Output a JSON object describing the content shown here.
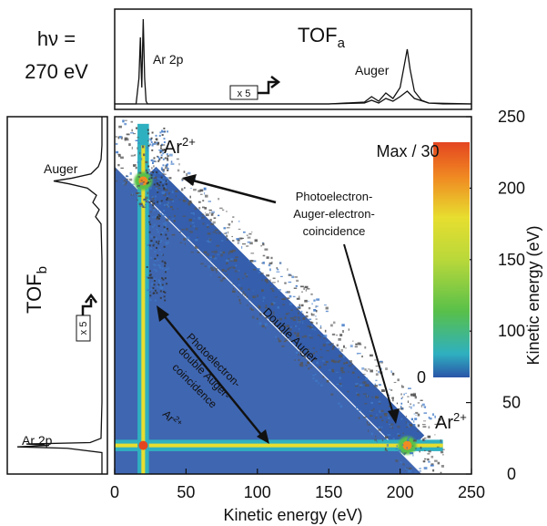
{
  "figure": {
    "photon_energy_line1": "hν =",
    "photon_energy_line2": "270 eV",
    "colors": {
      "frame": "#111111",
      "background_white": "#ffffff",
      "map_blue": "#2a55a8",
      "map_mid_blue": "#3f78c6",
      "map_cyan": "#2fb0c0",
      "map_green": "#58c04a",
      "map_yellow": "#e7de2f",
      "map_orange": "#f08a22",
      "map_red": "#e44520"
    }
  },
  "chart_data": [
    {
      "type": "heatmap",
      "panel": "main",
      "xlabel": "Kinetic energy (eV)",
      "ylabel": "Kinetic energy (eV)",
      "xlim": [
        0,
        250
      ],
      "ylim": [
        0,
        250
      ],
      "x_ticks": [
        0,
        50,
        100,
        150,
        200,
        250
      ],
      "y_ticks": [
        0,
        50,
        100,
        150,
        200,
        250
      ],
      "colorbar": {
        "title": "Max / 30",
        "min_label": "0",
        "range": [
          0,
          1
        ]
      },
      "features": [
        {
          "name": "Ar 2p photoelectron band (horizontal)",
          "y": 20,
          "x_range": [
            0,
            230
          ]
        },
        {
          "name": "Ar 2p photoelectron band (vertical)",
          "x": 20,
          "y_range": [
            0,
            245
          ]
        },
        {
          "name": "Double Auger diagonal band",
          "sum_energy": 230,
          "x_range": [
            22,
            210
          ]
        },
        {
          "name": "Photoelectron-Auger coincidence (upper left)",
          "x": 20,
          "y": 205
        },
        {
          "name": "Photoelectron-Auger coincidence (lower right)",
          "x": 205,
          "y": 20
        }
      ],
      "annotations": [
        {
          "text": "Ar²⁺",
          "x": 30,
          "y": 232
        },
        {
          "text": "Ar²⁺",
          "x": 222,
          "y": 28
        },
        {
          "text": "Double Auger",
          "x": 80,
          "y": 97
        },
        {
          "text": "Photoelectron-double Auger-coincidence",
          "x": 50,
          "y": 60
        },
        {
          "text": "Ar²⁺",
          "x": 28,
          "y": 38
        },
        {
          "text": "Photoelectron-Auger-electron-coincidence",
          "x": 125,
          "y": 205
        }
      ]
    },
    {
      "type": "line",
      "panel": "TOF_a",
      "title": "TOF",
      "title_sub": "a",
      "xlim": [
        0,
        250
      ],
      "series": [
        {
          "name": "",
          "x": [
            0,
            15,
            17,
            18,
            18.5,
            19,
            20,
            21,
            22,
            23,
            25,
            40,
            100,
            150,
            175,
            180,
            185,
            190,
            195,
            200,
            203,
            205,
            207,
            210,
            215,
            220,
            230,
            250
          ],
          "y": [
            0.02,
            0.02,
            0.3,
            0.75,
            0.45,
            0.2,
            0.95,
            0.3,
            0.05,
            0.02,
            0.02,
            0.02,
            0.02,
            0.02,
            0.04,
            0.1,
            0.05,
            0.14,
            0.08,
            0.2,
            0.45,
            0.62,
            0.4,
            0.16,
            0.06,
            0.03,
            0.02,
            0.02
          ]
        },
        {
          "name": "",
          "x": [
            0,
            150,
            175,
            180,
            185,
            190,
            195,
            200,
            205,
            210,
            220,
            250
          ],
          "y": [
            0.02,
            0.02,
            0.03,
            0.06,
            0.03,
            0.08,
            0.05,
            0.1,
            0.16,
            0.08,
            0.03,
            0.02
          ]
        }
      ],
      "peak_labels": [
        {
          "text": "Ar 2p",
          "x": 20
        },
        {
          "text": "Auger",
          "x": 205
        }
      ],
      "scale_note": "x 5"
    },
    {
      "type": "line",
      "panel": "TOF_b",
      "title": "TOF",
      "title_sub": "b",
      "ylim": [
        0,
        250
      ],
      "series": [
        {
          "name": "",
          "y": [
            0,
            15,
            18,
            19,
            20,
            21,
            22,
            25,
            50,
            100,
            150,
            175,
            180,
            185,
            190,
            195,
            200,
            203,
            205,
            207,
            210,
            215,
            220,
            230,
            250
          ],
          "x": [
            0.02,
            0.02,
            0.4,
            0.95,
            0.6,
            0.85,
            0.15,
            0.03,
            0.02,
            0.02,
            0.02,
            0.03,
            0.09,
            0.05,
            0.12,
            0.08,
            0.18,
            0.38,
            0.55,
            0.35,
            0.14,
            0.06,
            0.03,
            0.02,
            0.02
          ]
        }
      ],
      "peak_labels": [
        {
          "text": "Ar 2p",
          "y": 20
        },
        {
          "text": "Auger",
          "y": 205
        }
      ],
      "scale_note": "x 5"
    }
  ]
}
